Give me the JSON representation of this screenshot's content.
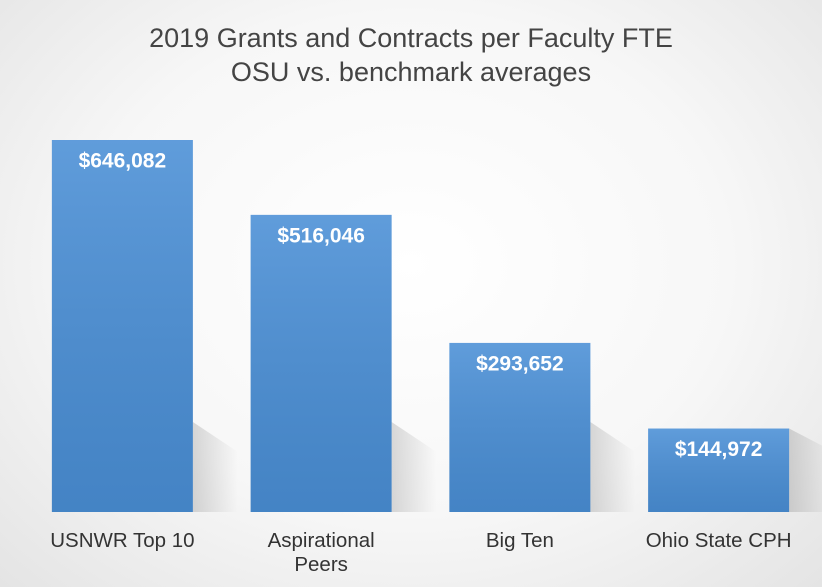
{
  "chart_data": {
    "type": "bar",
    "title": "2019 Grants and Contracts per Faculty FTE",
    "subtitle": "OSU vs. benchmark averages",
    "categories": [
      "USNWR Top 10",
      "Aspirational Peers",
      "Big Ten",
      "Ohio State CPH"
    ],
    "values": [
      646082,
      516046,
      293652,
      144972
    ],
    "value_labels": [
      "$646,082",
      "$516,046",
      "$293,652",
      "$144,972"
    ],
    "color": "#4a8fd6"
  }
}
